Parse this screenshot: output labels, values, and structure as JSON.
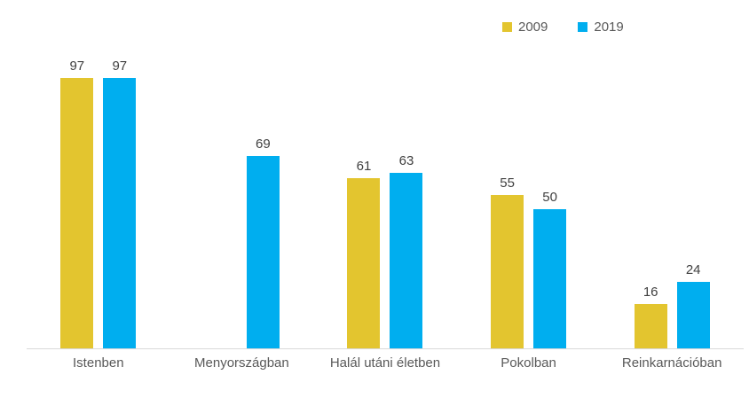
{
  "chart_data": {
    "type": "bar",
    "categories": [
      "Istenben",
      "Menyországban",
      "Halál utáni életben",
      "Pokolban",
      "Reinkarnációban"
    ],
    "series": [
      {
        "name": "2009",
        "color": "#e3c52f",
        "values": [
          97,
          null,
          61,
          55,
          16
        ]
      },
      {
        "name": "2019",
        "color": "#00aeef",
        "values": [
          97,
          69,
          63,
          50,
          24
        ]
      }
    ],
    "title": "",
    "xlabel": "",
    "ylabel": "",
    "ylim": [
      0,
      100
    ],
    "grid": false,
    "legend_position": "top-right",
    "value_labels_shown": true,
    "axis_line_color": "#d9d9d9",
    "category_label_color": "#595959",
    "value_label_color": "#404040"
  }
}
